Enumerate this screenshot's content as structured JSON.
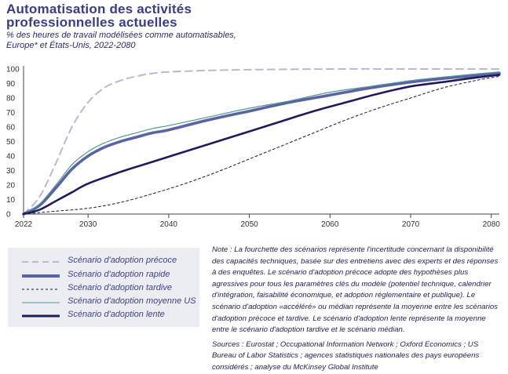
{
  "header": {
    "title": "Automatisation des activités professionnelles actuelles",
    "subtitle": "% des heures de travail modélisées comme automatisables, Europe* et États-Unis, 2022-2080"
  },
  "colors": {
    "early": "#b7bad1",
    "rapid": "#5b63a5",
    "late": "#1a1b2d",
    "median_us": "#4f9a95",
    "slow": "#1f1b5c"
  },
  "chart_data": {
    "type": "line",
    "title": "Automatisation des activités professionnelles actuelles",
    "subtitle": "% des heures de travail modélisées comme automatisables, Europe* et États-Unis, 2022-2080",
    "xlabel": "",
    "ylabel": "",
    "xlim": [
      2022,
      2081
    ],
    "ylim": [
      0,
      100
    ],
    "x_ticks": [
      "2022",
      "2030",
      "2040",
      "2050",
      "2060",
      "2070",
      "2080"
    ],
    "y_ticks": [
      "0",
      "10",
      "20",
      "30",
      "40",
      "50",
      "60",
      "70",
      "80",
      "90",
      "100"
    ],
    "grid": false,
    "legend_position": "bottom-left",
    "series": [
      {
        "name": "Scénario d'adoption précoce",
        "style": "dashed",
        "x": [
          2022,
          2024,
          2026,
          2028,
          2030,
          2032,
          2034,
          2036,
          2038,
          2040,
          2045,
          2050,
          2060,
          2070,
          2081
        ],
        "y": [
          0,
          12,
          35,
          60,
          77,
          87,
          92,
          95,
          97,
          98,
          99,
          99.5,
          100,
          100,
          100
        ]
      },
      {
        "name": "Scénario d'adoption rapide",
        "style": "thick",
        "x": [
          2022,
          2024,
          2026,
          2028,
          2030,
          2032,
          2034,
          2036,
          2038,
          2040,
          2045,
          2050,
          2055,
          2060,
          2065,
          2070,
          2075,
          2081
        ],
        "y": [
          0,
          6,
          18,
          31,
          40,
          46,
          50,
          53,
          56,
          58,
          65,
          71,
          77,
          82,
          87,
          91,
          94,
          97
        ]
      },
      {
        "name": "Scénario d'adoption tardive",
        "style": "dashed-fine",
        "x": [
          2022,
          2026,
          2030,
          2034,
          2038,
          2042,
          2046,
          2050,
          2054,
          2058,
          2062,
          2066,
          2070,
          2074,
          2078,
          2081
        ],
        "y": [
          0,
          2,
          4,
          8,
          14,
          21,
          29,
          38,
          47,
          56,
          65,
          73,
          80,
          87,
          92,
          95
        ]
      },
      {
        "name": "Scénario d'adoption moyenne US",
        "style": "thin",
        "x": [
          2022,
          2024,
          2026,
          2028,
          2030,
          2032,
          2034,
          2036,
          2038,
          2040,
          2045,
          2050,
          2055,
          2060,
          2065,
          2070,
          2075,
          2081
        ],
        "y": [
          0,
          7,
          20,
          34,
          43,
          49,
          53,
          56,
          59,
          61,
          67,
          73,
          78,
          84,
          88,
          92,
          95,
          98
        ]
      },
      {
        "name": "Scénario d'adoption lente",
        "style": "thick-dark",
        "x": [
          2022,
          2024,
          2026,
          2028,
          2030,
          2034,
          2038,
          2042,
          2046,
          2050,
          2054,
          2058,
          2062,
          2066,
          2070,
          2074,
          2078,
          2081
        ],
        "y": [
          0,
          3,
          9,
          15,
          21,
          29,
          36,
          43,
          50,
          57,
          64,
          71,
          77,
          83,
          88,
          91,
          94,
          96
        ]
      }
    ]
  },
  "legend": {
    "items": [
      "Scénario d'adoption précoce",
      "Scénario d'adoption rapide",
      "Scénario d'adoption tardive",
      "Scénario d'adoption moyenne US",
      "Scénario d'adoption lente"
    ]
  },
  "note": {
    "text": "Note : La fourchette des scénarios représente l'incertitude concernant la disponibilité des capacités techniques, basée sur des entretiens avec des experts et des réponses à des enquêtes. Le scénario d'adoption précoce adopte des hypothèses plus agressives pour tous les paramètres clés du modèle (potentiel technique, calendrier d'intégration, faisabilité économique, et adoption réglementaire et publique). Le scénario d'adoption «accéléré» ou médian représente la moyenne entre les scénarios d'adoption précoce et tardive. Le scénario d'adoption lente représente la moyenne entre le scénario d'adoption tardive et le scénario médian.",
    "sources": "Sources : Eurostat ; Occupational Information Network ; Oxford Economics ; US Bureau of Labor Statistics ; agences statistiques nationales des pays européens considérés ; analyse du McKinsey Global Institute"
  }
}
